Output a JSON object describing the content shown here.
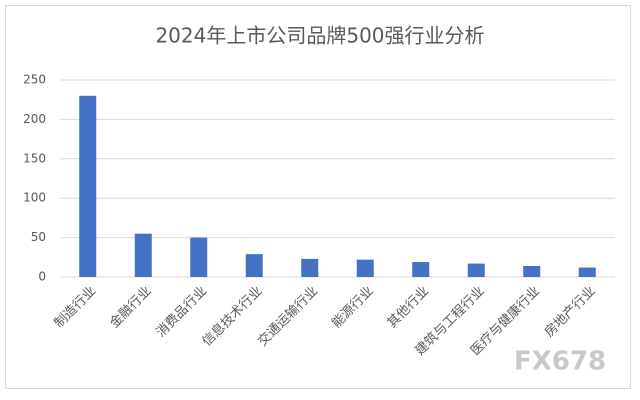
{
  "chart_data": {
    "type": "bar",
    "title": "2024年上市公司品牌500强行业分析",
    "categories": [
      "制造行业",
      "金融行业",
      "消费品行业",
      "信息技术行业",
      "交通运输行业",
      "能源行业",
      "其他行业",
      "建筑与工程行业",
      "医疗与健康行业",
      "房地产行业"
    ],
    "values": [
      230,
      55,
      50,
      29,
      23,
      22,
      19,
      17,
      14,
      12
    ],
    "color": "#4472c4",
    "ylim": [
      0,
      250
    ],
    "yticks": [
      0,
      50,
      100,
      150,
      200,
      250
    ],
    "grid": true,
    "watermark": "FX678"
  }
}
